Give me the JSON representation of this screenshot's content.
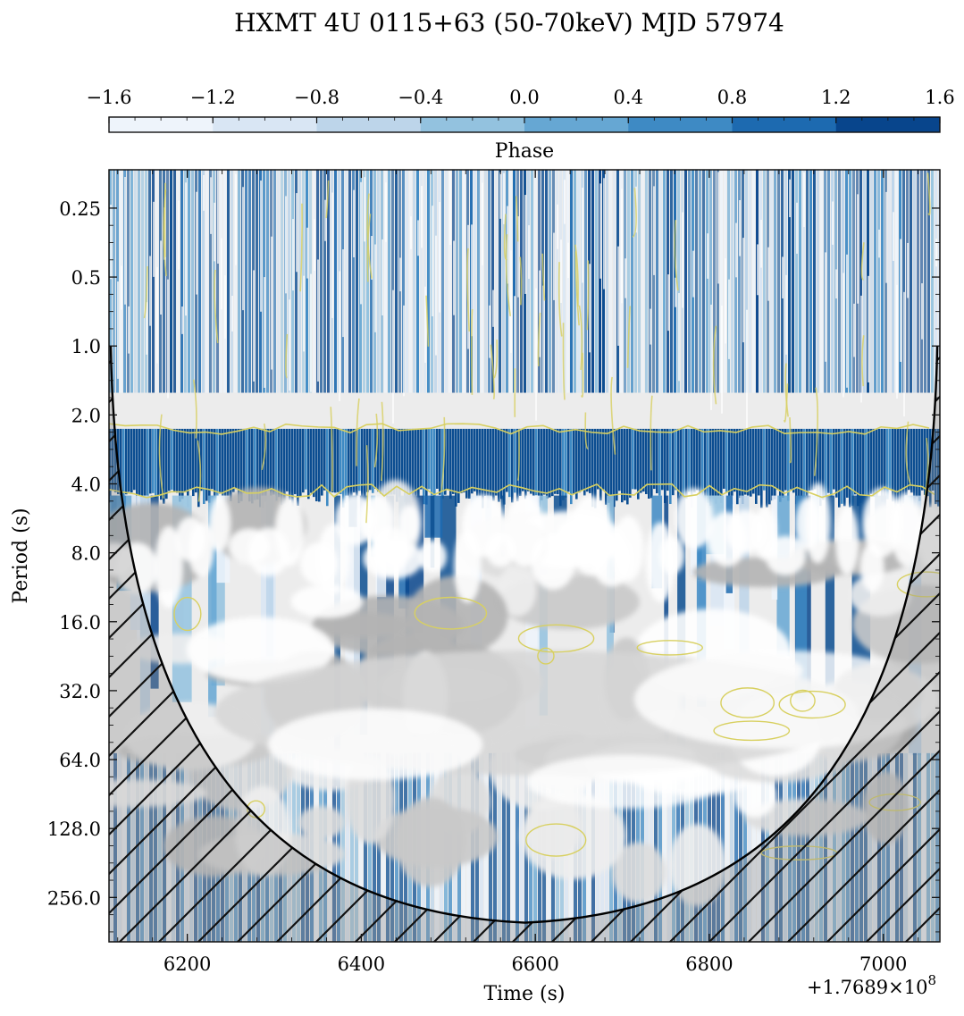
{
  "chart_data": {
    "type": "heatmap",
    "title": "HXMT 4U 0115+63 (50-70keV) MJD 57974",
    "xlabel": "Time (s)",
    "ylabel": "Period (s)",
    "x_offset_label": "+1.7689×10",
    "x_offset_exp": "8",
    "xlim": [
      6110,
      7065
    ],
    "xticks": [
      "6200",
      "6400",
      "6600",
      "6800",
      "7000"
    ],
    "xtick_values": [
      6200,
      6400,
      6600,
      6800,
      7000
    ],
    "y_scale": "log2",
    "ylim": [
      0.17,
      400
    ],
    "yticks": [
      "0.25",
      "0.5",
      "1.0",
      "2.0",
      "4.0",
      "8.0",
      "16.0",
      "32.0",
      "64.0",
      "128.0",
      "256.0"
    ],
    "ytick_values": [
      0.25,
      0.5,
      1,
      2,
      4,
      8,
      16,
      32,
      64,
      128,
      256
    ],
    "colorbar": {
      "label": "Phase",
      "ticks": [
        "−1.6",
        "−1.2",
        "−0.8",
        "−0.4",
        "0.0",
        "0.4",
        "0.8",
        "1.2",
        "1.6"
      ],
      "tick_values": [
        -1.6,
        -1.2,
        -0.8,
        -0.4,
        0,
        0.4,
        0.8,
        1.2,
        1.6
      ],
      "colors": [
        "#eef4fb",
        "#d9e6f4",
        "#bdd5ea",
        "#93c2df",
        "#66a7d3",
        "#3e8ac4",
        "#1d6ab0",
        "#08458c"
      ]
    },
    "cone_of_influence": {
      "apex": [
        6588,
        330
      ],
      "left_edge": [
        6112,
        1.0
      ],
      "right_edge": [
        7062,
        1.0
      ],
      "hatched": true
    },
    "colors": {
      "coherent_band": "#0b4d91",
      "power_contours": [
        "#ffffff",
        "#eeeeee",
        "#dddddd",
        "#c9c9c9",
        "#b4b4b4"
      ],
      "significance_contour": "#d8d060",
      "hatch": "#111111"
    }
  }
}
